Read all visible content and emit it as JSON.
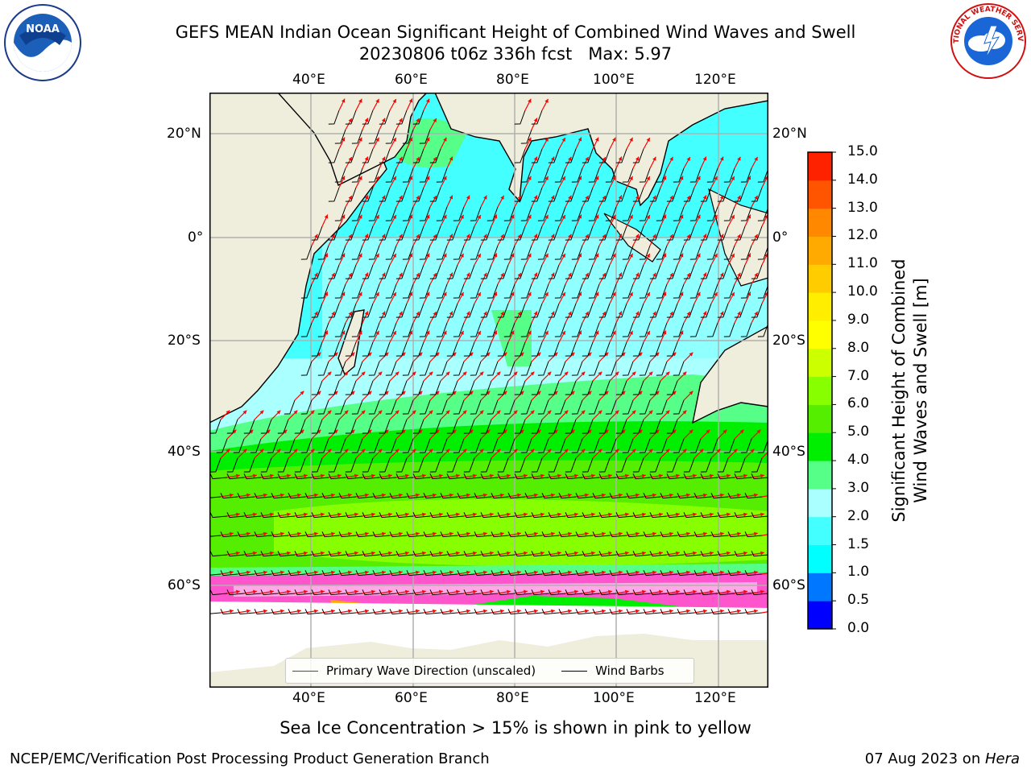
{
  "header": {
    "title_line1": "GEFS MEAN Indian Ocean Significant Height of Combined Wind Waves and Swell",
    "title_line2": "20230806 t06z 336h fcst   Max: 5.97"
  },
  "logos": {
    "left_name": "NOAA",
    "right_name": "NATIONAL WEATHER SERVICE"
  },
  "map": {
    "lon_ticks": [
      "40°E",
      "60°E",
      "80°E",
      "100°E",
      "120°E"
    ],
    "lat_ticks": [
      "20°N",
      "0°",
      "20°S",
      "40°S",
      "60°S"
    ],
    "land_color": "#efeedc",
    "ice_color": "#ff55cc"
  },
  "legend": {
    "wave_label": "Primary Wave Direction (unscaled)",
    "wave_color": "#ff0000",
    "barb_label": "Wind Barbs",
    "barb_color": "#000000"
  },
  "colorbar": {
    "title_line1": "Significant Height of Combined",
    "title_line2": "Wind Waves and Swell [m]",
    "ticks": [
      "0.0",
      "0.5",
      "1.0",
      "1.5",
      "2.0",
      "3.0",
      "4.0",
      "5.0",
      "6.0",
      "7.0",
      "8.0",
      "9.0",
      "10.0",
      "11.0",
      "12.0",
      "13.0",
      "14.0",
      "15.0"
    ],
    "colors": [
      "#0000ff",
      "#0077ff",
      "#00ffff",
      "#44ffff",
      "#aaffff",
      "#55ff88",
      "#00ee00",
      "#55ee00",
      "#88ff00",
      "#ccff00",
      "#ffff00",
      "#ffee00",
      "#ffcc00",
      "#ffaa00",
      "#ff8800",
      "#ff5500",
      "#ff2200"
    ]
  },
  "footer": {
    "subtitle": "Sea Ice Concentration > 15% is shown in pink to yellow",
    "left": "NCEP/EMC/Verification Post Processing Product Generation Branch",
    "right_date": "07 Aug 2023 on ",
    "right_host": "Hera"
  }
}
